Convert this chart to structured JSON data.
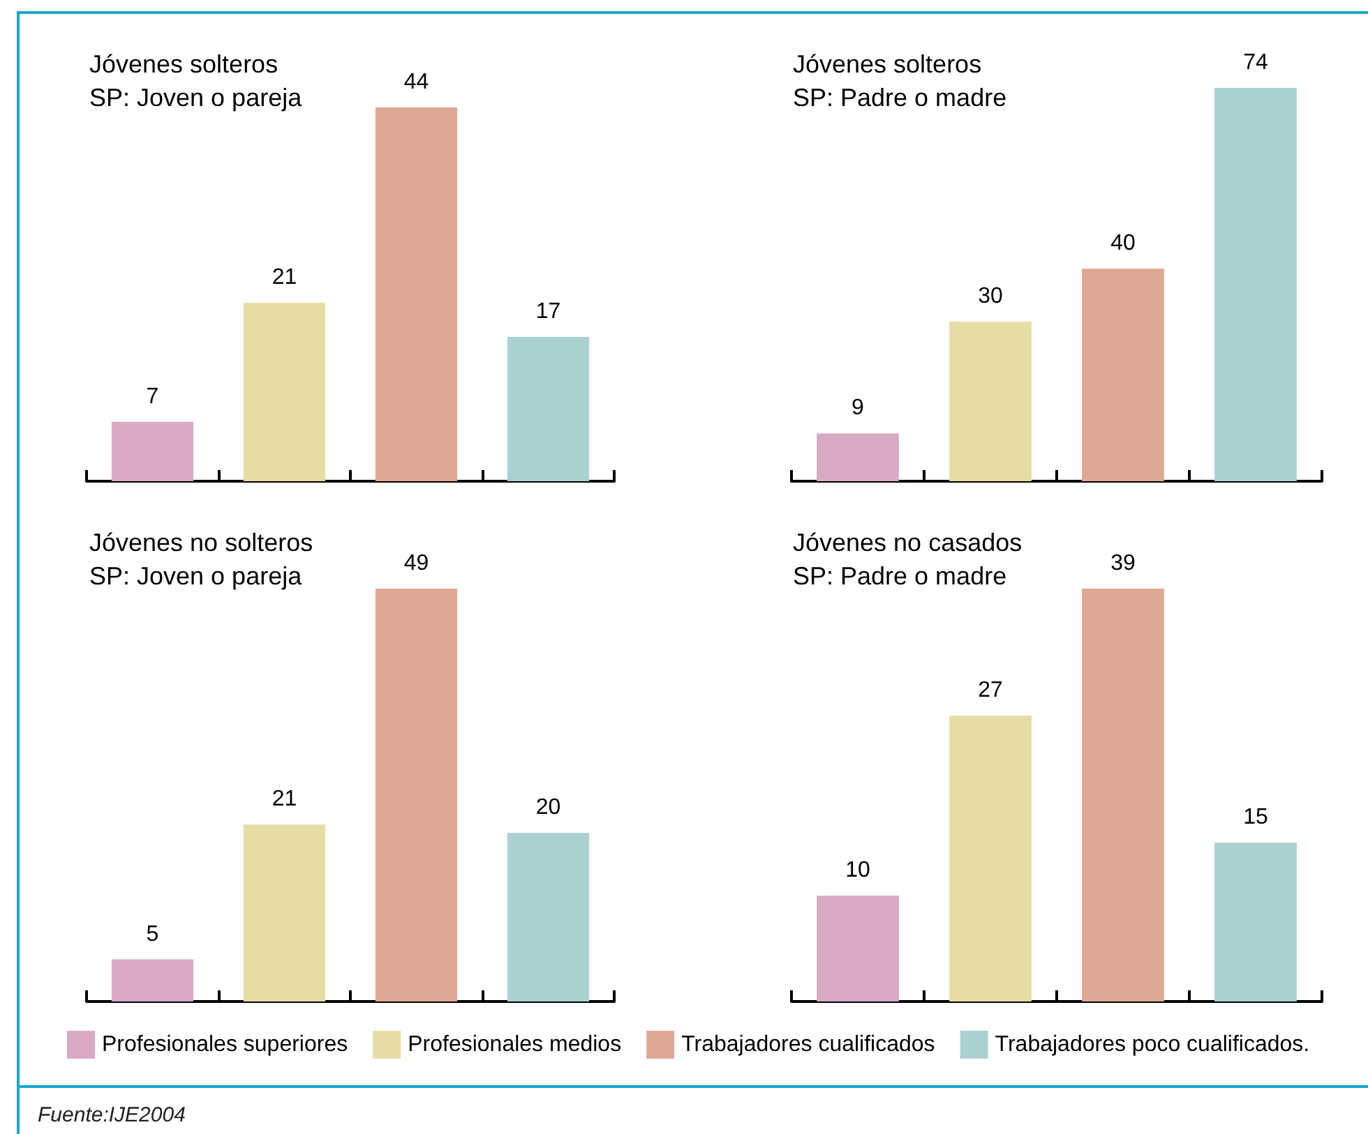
{
  "chart_data": [
    {
      "type": "bar",
      "title": "Jóvenes solteros",
      "subtitle": "SP: Joven o pareja",
      "categories": [
        null,
        null,
        null,
        null
      ],
      "data_labels": true,
      "values": [
        7,
        21,
        44,
        17
      ],
      "colors": [
        "#d9aac4",
        "#e6dca6",
        "#dea896",
        "#abd0d0"
      ]
    },
    {
      "type": "bar",
      "title": "Jóvenes solteros",
      "subtitle": "SP: Padre o madre",
      "categories": [
        null,
        null,
        null,
        null
      ],
      "data_labels": true,
      "values": [
        9,
        30,
        40,
        74
      ],
      "colors": [
        "#d9aac4",
        "#e6dca6",
        "#dea896",
        "#abd0d0"
      ]
    },
    {
      "type": "bar",
      "title": "Jóvenes no solteros",
      "subtitle": "SP: Joven o pareja",
      "categories": [
        null,
        null,
        null,
        null
      ],
      "data_labels": true,
      "stacked": true,
      "legend": "bottom",
      "annotations": [
        "Fuente:IJE2004"
      ],
      "series": [
        {
          "name": "Profesionales superiores",
          "color": "#d9aac4",
          "values": [
            5,
            null,
            null,
            null
          ]
        },
        {
          "name": "Profesionales medios",
          "color": "#e6dca6",
          "values": [
            null,
            21,
            null,
            null
          ]
        },
        {
          "name": "Trabajadores cualificados",
          "color": "#dea896",
          "values": [
            null,
            null,
            49,
            null
          ]
        },
        {
          "name": "Trabajadores poco cualificados.",
          "color": "#abd0d0",
          "values": [
            null,
            null,
            null,
            20
          ]
        }
      ]
    },
    {
      "type": "bar",
      "title": "Jóvenes no casados",
      "subtitle": "SP: Padre o madre",
      "categories": [
        null,
        null,
        null,
        null
      ],
      "data_labels": true,
      "values": [
        10,
        27,
        39,
        15
      ],
      "colors": [
        "#d9aac4",
        "#e6dca6",
        "#dea896",
        "#abd0d0"
      ]
    }
  ]
}
